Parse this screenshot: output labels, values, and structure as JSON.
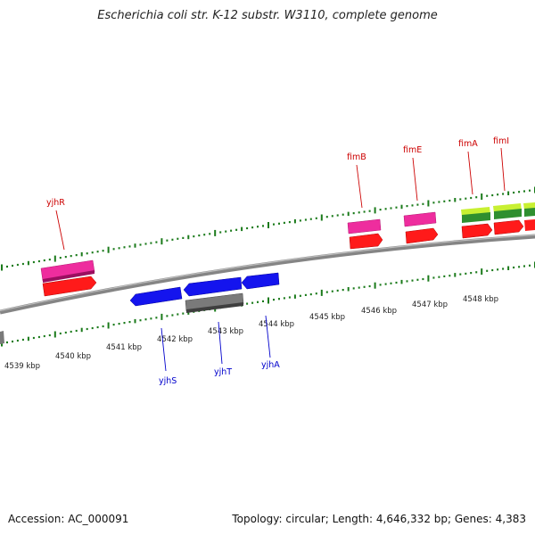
{
  "title": "Escherichia coli str. K-12 substr. W3110, complete genome",
  "footer": {
    "accession": "Accession: AC_000091",
    "summary": "Topology: circular; Length: 4,646,332 bp; Genes: 4,383"
  },
  "scale": {
    "kbp_labels": [
      "4539 kbp",
      "4540 kbp",
      "4541 kbp",
      "4542 kbp",
      "4543 kbp",
      "4544 kbp",
      "4545 kbp",
      "4546 kbp",
      "4547 kbp",
      "4548 kbp"
    ]
  },
  "genes": {
    "forward": [
      {
        "name": "yjhR",
        "color": "#e01a22"
      },
      {
        "name": "fimB",
        "color": "#e01a22"
      },
      {
        "name": "fimE",
        "color": "#e01a22"
      },
      {
        "name": "fimA",
        "color": "#e01a22"
      },
      {
        "name": "fimI",
        "color": "#e01a22"
      }
    ],
    "reverse": [
      {
        "name": "yjhS",
        "color": "#1a1ad0"
      },
      {
        "name": "yjhT",
        "color": "#1a1ad0"
      },
      {
        "name": "yjhA",
        "color": "#1a1ad0"
      }
    ]
  },
  "colors": {
    "forward_label": "#cc0000",
    "reverse_label": "#0000cc",
    "tick": "#1a7a1a",
    "backbone": "#888888",
    "gene_red": "#ff1111",
    "gene_pink": "#ee2299",
    "gene_blue": "#1111ee",
    "gene_gray": "#777777",
    "gene_green": "#88dd22"
  }
}
